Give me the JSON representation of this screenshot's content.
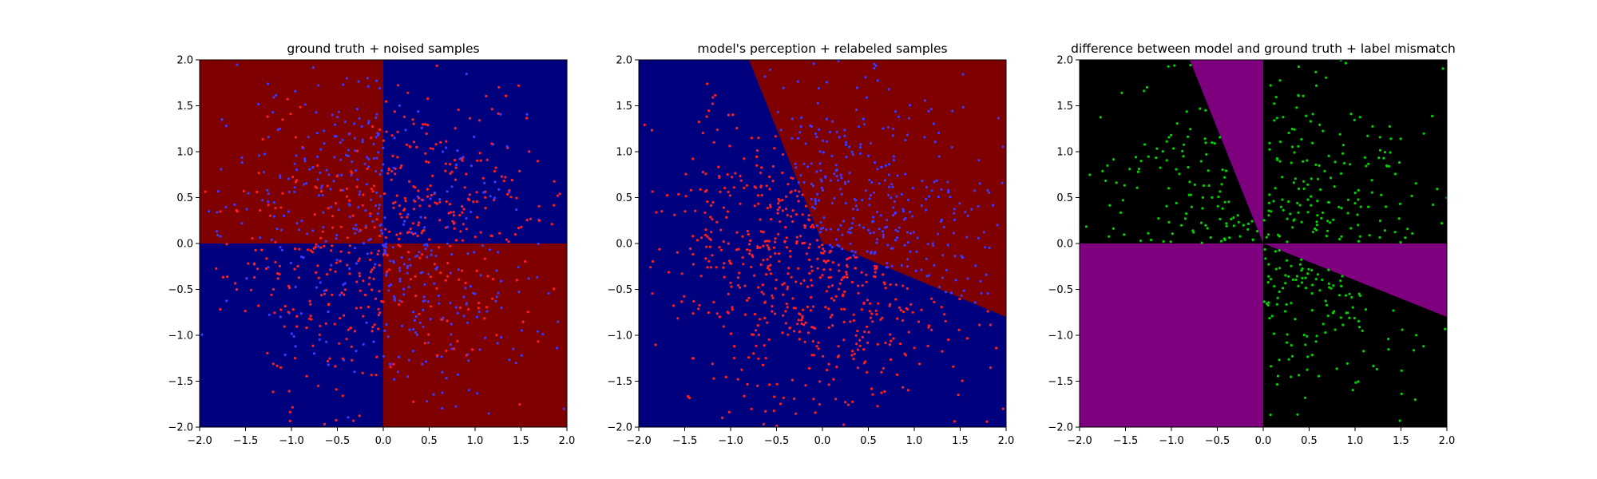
{
  "chart_data": [
    {
      "type": "scatter",
      "title": "ground truth + noised samples",
      "xlim": [
        -2.0,
        2.0
      ],
      "ylim": [
        -2.0,
        2.0
      ],
      "xticks": [
        "−2.0",
        "−1.5",
        "−1.0",
        "−0.5",
        "0.0",
        "0.5",
        "1.0",
        "1.5",
        "2.0"
      ],
      "yticks": [
        "−2.0",
        "−1.5",
        "−1.0",
        "−0.5",
        "0.0",
        "0.5",
        "1.0",
        "1.5",
        "2.0"
      ],
      "background_regions": [
        {
          "fill": "#7f0000",
          "polygon": [
            [
              -2,
              0
            ],
            [
              0,
              0
            ],
            [
              0,
              2
            ],
            [
              -2,
              2
            ]
          ]
        },
        {
          "fill": "#00007f",
          "polygon": [
            [
              0,
              0
            ],
            [
              2,
              0
            ],
            [
              2,
              2
            ],
            [
              0,
              2
            ]
          ]
        },
        {
          "fill": "#00007f",
          "polygon": [
            [
              -2,
              -2
            ],
            [
              0,
              -2
            ],
            [
              0,
              0
            ],
            [
              -2,
              0
            ]
          ]
        },
        {
          "fill": "#7f0000",
          "polygon": [
            [
              0,
              -2
            ],
            [
              2,
              -2
            ],
            [
              2,
              0
            ],
            [
              0,
              0
            ]
          ]
        }
      ],
      "series": [
        {
          "label_rule": "xy_negative_red",
          "color": "#ff1f1f",
          "alt_color": "#3a3aff",
          "count": 900,
          "seed": 11
        }
      ],
      "grid": false
    },
    {
      "type": "scatter",
      "title": "model's perception + relabeled samples",
      "xlim": [
        -2.0,
        2.0
      ],
      "ylim": [
        -2.0,
        2.0
      ],
      "xticks": [
        "−2.0",
        "−1.5",
        "−1.0",
        "−0.5",
        "0.0",
        "0.5",
        "1.0",
        "1.5",
        "2.0"
      ],
      "yticks": [
        "−2.0",
        "−1.5",
        "−1.0",
        "−0.5",
        "0.0",
        "0.5",
        "1.0",
        "1.5",
        "2.0"
      ],
      "background_regions": [
        {
          "fill": "#00007f",
          "polygon": [
            [
              -2,
              -2
            ],
            [
              2,
              -2
            ],
            [
              2,
              2
            ],
            [
              -2,
              2
            ]
          ]
        },
        {
          "fill": "#7f0000",
          "polygon": [
            [
              -0.8,
              2
            ],
            [
              2,
              2
            ],
            [
              2,
              -0.8
            ],
            [
              0.2,
              -0.05
            ],
            [
              0,
              0
            ]
          ]
        }
      ],
      "series": [
        {
          "label_rule": "model_boundary",
          "color": "#ff1f1f",
          "alt_color": "#3a3aff",
          "count": 900,
          "seed": 11
        }
      ],
      "grid": false
    },
    {
      "type": "scatter",
      "title": "difference between model and ground truth + label mismatch",
      "xlim": [
        -2.0,
        2.0
      ],
      "ylim": [
        -2.0,
        2.0
      ],
      "xticks": [
        "−2.0",
        "−1.5",
        "−1.0",
        "−0.5",
        "0.0",
        "0.5",
        "1.0",
        "1.5",
        "2.0"
      ],
      "yticks": [
        "−2.0",
        "−1.5",
        "−1.0",
        "−0.5",
        "0.0",
        "0.5",
        "1.0",
        "1.5",
        "2.0"
      ],
      "background_regions": [
        {
          "fill": "#000000",
          "polygon": [
            [
              -2,
              -2
            ],
            [
              2,
              -2
            ],
            [
              2,
              2
            ],
            [
              -2,
              2
            ]
          ]
        },
        {
          "fill": "#7f007f",
          "polygon": [
            [
              -2,
              -2
            ],
            [
              0,
              -2
            ],
            [
              0,
              0
            ],
            [
              -2,
              0
            ]
          ]
        },
        {
          "fill": "#7f007f",
          "polygon": [
            [
              -0.8,
              2
            ],
            [
              0,
              2
            ],
            [
              0,
              0
            ]
          ]
        },
        {
          "fill": "#7f007f",
          "polygon": [
            [
              0,
              0
            ],
            [
              2,
              -0.8
            ],
            [
              2,
              0
            ]
          ]
        }
      ],
      "series": [
        {
          "label_rule": "mismatch_points",
          "color": "#00d000",
          "count": 420,
          "seed": 23
        }
      ],
      "grid": false
    }
  ]
}
